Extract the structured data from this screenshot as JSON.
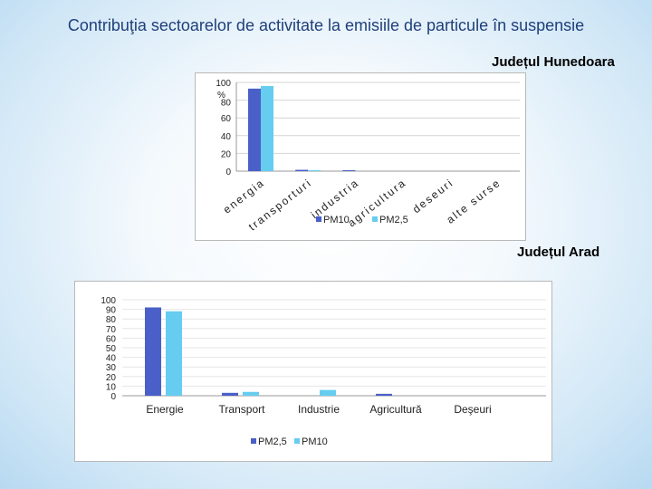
{
  "slide": {
    "title": "Contribuţia sectoarelor de activitate la  emisiile de particule în suspensie"
  },
  "chart_data": [
    {
      "type": "bar",
      "title": "Județul Hunedoara",
      "ylabel": "%",
      "categories": [
        "energia",
        "transporturi",
        "industria",
        "agricultura",
        "deseuri",
        "alte surse"
      ],
      "series": [
        {
          "name": "PM10",
          "values": [
            93,
            1.5,
            1,
            0,
            0,
            0
          ],
          "color": "#4a60c8"
        },
        {
          "name": "PM2,5",
          "values": [
            96,
            1,
            0,
            0,
            0,
            0
          ],
          "color": "#66cdf0"
        }
      ],
      "ylim": [
        0,
        100
      ],
      "yticks": [
        "100",
        "80",
        "60",
        "40",
        "20",
        "0"
      ],
      "grid": true,
      "legend": "bottom"
    },
    {
      "type": "bar",
      "title": "Județul Arad",
      "categories": [
        "Energie",
        "Transport",
        "Industrie",
        "Agricultură",
        "Deşeuri"
      ],
      "series": [
        {
          "name": "PM2,5",
          "values": [
            92,
            3,
            0,
            2,
            0
          ],
          "color": "#4a60c8"
        },
        {
          "name": "PM10",
          "values": [
            88,
            4,
            6,
            0,
            0
          ],
          "color": "#66cdf0"
        }
      ],
      "ylim": [
        0,
        100
      ],
      "yticks": [
        "100",
        "90",
        "80",
        "70",
        "60",
        "50",
        "40",
        "30",
        "20",
        "10",
        "0"
      ],
      "grid": true,
      "legend": "bottom"
    }
  ]
}
